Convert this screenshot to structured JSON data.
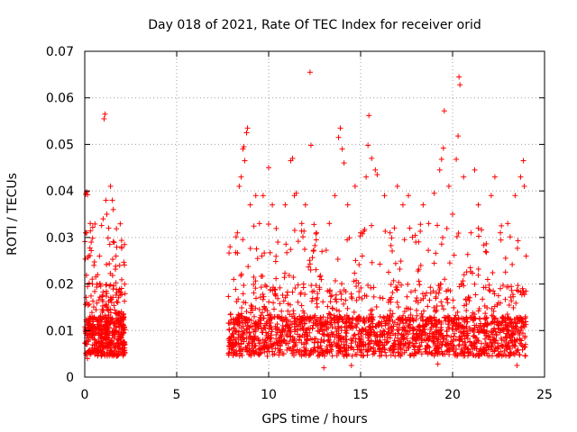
{
  "chart_data": {
    "type": "scatter",
    "title": "Day 018 of 2021, Rate Of TEC Index for receiver orid",
    "xlabel": "GPS time / hours",
    "ylabel": "ROTI / TECUs",
    "xlim": [
      0,
      25
    ],
    "ylim": [
      0,
      0.07
    ],
    "xticks": [
      "0",
      "5",
      "10",
      "15",
      "20",
      "25"
    ],
    "yticks": [
      "0",
      "0.01",
      "0.02",
      "0.03",
      "0.04",
      "0.05",
      "0.06",
      "0.07"
    ],
    "grid": true,
    "marker": "+",
    "marker_color": "#ff0000",
    "background": "#ffffff",
    "data_gap_hours": [
      2.2,
      7.8
    ],
    "series": [
      {
        "points": [
          [
            0.05,
            0.0393
          ],
          [
            0.1,
            0.0398
          ],
          [
            0.15,
            0.0392
          ],
          [
            0.05,
            0.031
          ],
          [
            0.2,
            0.026
          ],
          [
            0.3,
            0.033
          ],
          [
            0.35,
            0.029
          ],
          [
            0.5,
            0.024
          ],
          [
            0.7,
            0.022
          ],
          [
            0.8,
            0.026
          ],
          [
            1.0,
            0.034
          ],
          [
            1.05,
            0.0555
          ],
          [
            1.1,
            0.0565
          ],
          [
            1.15,
            0.038
          ],
          [
            1.2,
            0.035
          ],
          [
            1.3,
            0.032
          ],
          [
            1.4,
            0.041
          ],
          [
            1.5,
            0.038
          ],
          [
            1.55,
            0.036
          ],
          [
            1.7,
            0.026
          ],
          [
            1.9,
            0.024
          ],
          [
            2.0,
            0.028
          ],
          [
            0.15,
            0.004
          ],
          [
            0.9,
            0.0045
          ],
          [
            1.6,
            0.0048
          ],
          [
            2.1,
            0.005
          ],
          [
            7.9,
            0.028
          ],
          [
            8.1,
            0.021
          ],
          [
            8.3,
            0.031
          ],
          [
            8.4,
            0.041
          ],
          [
            8.5,
            0.043
          ],
          [
            8.6,
            0.049
          ],
          [
            8.65,
            0.0495
          ],
          [
            8.7,
            0.0465
          ],
          [
            8.8,
            0.0525
          ],
          [
            8.85,
            0.0535
          ],
          [
            9.0,
            0.037
          ],
          [
            9.3,
            0.039
          ],
          [
            9.5,
            0.033
          ],
          [
            9.7,
            0.039
          ],
          [
            10.0,
            0.045
          ],
          [
            10.2,
            0.037
          ],
          [
            10.5,
            0.029
          ],
          [
            10.9,
            0.037
          ],
          [
            11.2,
            0.0465
          ],
          [
            11.3,
            0.047
          ],
          [
            11.4,
            0.039
          ],
          [
            11.5,
            0.0395
          ],
          [
            11.8,
            0.033
          ],
          [
            12.0,
            0.037
          ],
          [
            12.25,
            0.0655
          ],
          [
            12.3,
            0.0498
          ],
          [
            12.6,
            0.031
          ],
          [
            12.9,
            0.027
          ],
          [
            13.3,
            0.033
          ],
          [
            13.6,
            0.039
          ],
          [
            13.8,
            0.0515
          ],
          [
            13.9,
            0.0535
          ],
          [
            14.0,
            0.049
          ],
          [
            14.1,
            0.046
          ],
          [
            14.3,
            0.037
          ],
          [
            14.7,
            0.041
          ],
          [
            15.0,
            0.031
          ],
          [
            15.3,
            0.043
          ],
          [
            15.4,
            0.0498
          ],
          [
            15.45,
            0.0562
          ],
          [
            15.6,
            0.047
          ],
          [
            15.8,
            0.0445
          ],
          [
            15.9,
            0.0435
          ],
          [
            16.3,
            0.039
          ],
          [
            16.6,
            0.031
          ],
          [
            17.0,
            0.041
          ],
          [
            17.3,
            0.037
          ],
          [
            17.6,
            0.039
          ],
          [
            18.0,
            0.029
          ],
          [
            18.4,
            0.037
          ],
          [
            18.7,
            0.033
          ],
          [
            19.0,
            0.0395
          ],
          [
            19.3,
            0.0445
          ],
          [
            19.4,
            0.0468
          ],
          [
            19.5,
            0.0492
          ],
          [
            19.55,
            0.0572
          ],
          [
            19.8,
            0.041
          ],
          [
            20.0,
            0.035
          ],
          [
            20.2,
            0.0468
          ],
          [
            20.3,
            0.0518
          ],
          [
            20.35,
            0.0645
          ],
          [
            20.4,
            0.0628
          ],
          [
            20.6,
            0.043
          ],
          [
            21.0,
            0.031
          ],
          [
            21.2,
            0.0445
          ],
          [
            21.4,
            0.037
          ],
          [
            21.8,
            0.027
          ],
          [
            22.1,
            0.039
          ],
          [
            22.3,
            0.043
          ],
          [
            22.6,
            0.031
          ],
          [
            23.0,
            0.033
          ],
          [
            23.4,
            0.039
          ],
          [
            23.7,
            0.043
          ],
          [
            23.85,
            0.0465
          ],
          [
            23.9,
            0.041
          ],
          [
            24.0,
            0.026
          ],
          [
            13.0,
            0.002
          ],
          [
            14.5,
            0.0025
          ],
          [
            19.2,
            0.0028
          ],
          [
            23.5,
            0.0025
          ]
        ]
      }
    ]
  }
}
